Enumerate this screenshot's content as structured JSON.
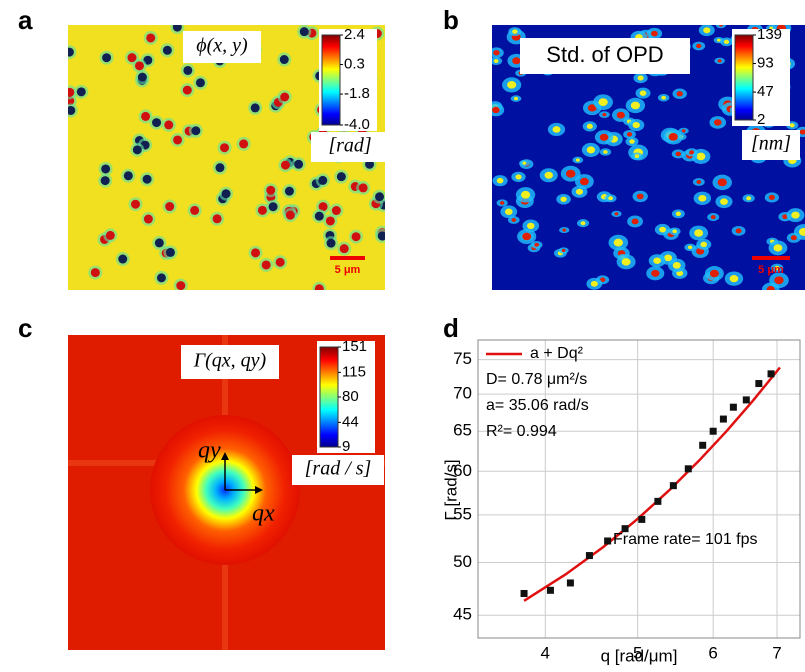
{
  "panels": [
    {
      "label": "a",
      "title": "ϕ(x, y)",
      "colorbar": {
        "lim": [
          -4,
          2.4
        ],
        "ticks": [
          2.4,
          0.3,
          -1.8,
          {
            "value": -4,
            "label": "-4.0"
          }
        ]
      },
      "unit": "[rad]",
      "scale_bar": "5 μm"
    },
    {
      "label": "b",
      "title": "Std. of OPD",
      "colorbar": {
        "lim": [
          2,
          139
        ],
        "ticks": [
          139,
          93,
          47,
          2
        ]
      },
      "unit": "[nm]",
      "scale_bar": "5 μm"
    },
    {
      "label": "c",
      "title": "Γ(qx, qy)",
      "colorbar": {
        "lim": [
          9,
          151
        ],
        "ticks": [
          151,
          115,
          80,
          44,
          9
        ]
      },
      "unit": "[rad / s]",
      "axes": [
        "qy",
        "qx"
      ]
    }
  ],
  "chart_data": {
    "label": "d",
    "type": "scatter",
    "x": [
      3.8,
      4.05,
      4.25,
      4.45,
      4.65,
      4.85,
      5.05,
      5.25,
      5.45,
      5.65,
      5.85,
      6.0,
      6.15,
      6.3,
      6.5,
      6.7,
      6.9
    ],
    "values": [
      47.0,
      47.3,
      48.0,
      50.7,
      52.2,
      53.5,
      54.5,
      56.5,
      58.3,
      60.3,
      63.2,
      65.0,
      66.6,
      68.2,
      69.2,
      71.5,
      72.9
    ],
    "color": "#111111",
    "fit": {
      "name": "a + Dq²",
      "color": "#e01010",
      "x": [
        3.8,
        4.2,
        4.6,
        5.0,
        5.4,
        5.8,
        6.2,
        6.6,
        7.05
      ],
      "values": [
        46.32,
        48.82,
        51.56,
        54.56,
        57.8,
        61.3,
        65.04,
        69.04,
        73.83
      ]
    },
    "annotations": [
      "D= 0.78 μm²/s",
      "a= 35.06 rad/s",
      "R²= 0.994",
      "Frame rate= 101 fps"
    ],
    "xlabel": "q [rad/μm]",
    "ylabel": "Γ [rad/s]",
    "xlim": [
      3.4,
      7.4
    ],
    "ylim": [
      43,
      78
    ],
    "xticks": [
      4,
      5,
      6,
      7
    ],
    "yticks": [
      45,
      50,
      55,
      60,
      65,
      70,
      75
    ],
    "xlog": true,
    "ylog": true,
    "grid": true,
    "legend": "top-left"
  }
}
